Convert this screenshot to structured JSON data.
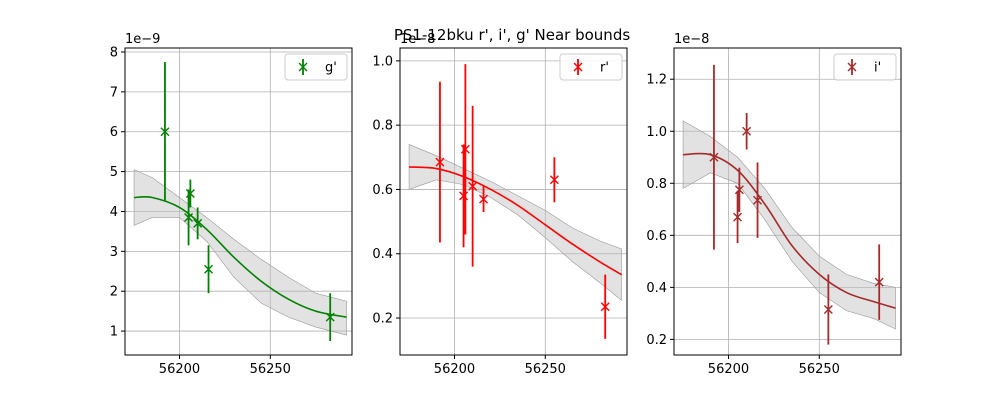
{
  "figure": {
    "title": "PS1-12bku  r', i', g' Near bounds"
  },
  "chart_data": [
    {
      "type": "scatter",
      "band": "g'",
      "color": "#008000",
      "band_fill": "#bfbfbf",
      "xlim": [
        56170,
        56295
      ],
      "ylim": [
        0.4,
        8.1
      ],
      "xticks": [
        56200,
        56250
      ],
      "yticks": [
        1,
        2,
        3,
        4,
        5,
        6,
        7,
        8
      ],
      "offset_label": "1e−9",
      "grid": true,
      "legend": {
        "position": "top-right",
        "label": "g'"
      },
      "points": [
        {
          "x": 56192,
          "y": 6.0,
          "yerr": 1.75
        },
        {
          "x": 56205,
          "y": 3.85,
          "yerr": 0.7
        },
        {
          "x": 56206,
          "y": 4.45,
          "yerr": 0.35
        },
        {
          "x": 56210,
          "y": 3.7,
          "yerr": 0.4
        },
        {
          "x": 56216,
          "y": 2.55,
          "yerr": 0.6
        },
        {
          "x": 56283,
          "y": 1.35,
          "yerr": 0.6
        }
      ],
      "fit": [
        {
          "x": 56175,
          "y": 4.35,
          "lo": 3.65,
          "hi": 5.05
        },
        {
          "x": 56185,
          "y": 4.35,
          "lo": 3.85,
          "hi": 4.85
        },
        {
          "x": 56200,
          "y": 4.1,
          "lo": 3.85,
          "hi": 4.35
        },
        {
          "x": 56215,
          "y": 3.55,
          "lo": 3.25,
          "hi": 3.85
        },
        {
          "x": 56230,
          "y": 2.85,
          "lo": 2.35,
          "hi": 3.3
        },
        {
          "x": 56245,
          "y": 2.25,
          "lo": 1.7,
          "hi": 2.8
        },
        {
          "x": 56260,
          "y": 1.8,
          "lo": 1.35,
          "hi": 2.35
        },
        {
          "x": 56275,
          "y": 1.5,
          "lo": 1.1,
          "hi": 1.95
        },
        {
          "x": 56292,
          "y": 1.35,
          "lo": 0.9,
          "hi": 1.75
        }
      ]
    },
    {
      "type": "scatter",
      "band": "r'",
      "color": "#ff0000",
      "band_fill": "#bfbfbf",
      "xlim": [
        56170,
        56295
      ],
      "ylim": [
        0.085,
        1.04
      ],
      "xticks": [
        56200,
        56250
      ],
      "yticks": [
        0.2,
        0.4,
        0.6,
        0.8,
        1.0
      ],
      "offset_label": "1e−8",
      "grid": true,
      "legend": {
        "position": "top-right",
        "label": "r'"
      },
      "points": [
        {
          "x": 56192,
          "y": 0.685,
          "yerr": 0.25
        },
        {
          "x": 56205,
          "y": 0.58,
          "yerr": 0.16
        },
        {
          "x": 56206,
          "y": 0.725,
          "yerr": 0.265
        },
        {
          "x": 56210,
          "y": 0.61,
          "yerr": 0.25
        },
        {
          "x": 56216,
          "y": 0.57,
          "yerr": 0.04
        },
        {
          "x": 56255,
          "y": 0.63,
          "yerr": 0.07
        },
        {
          "x": 56283,
          "y": 0.235,
          "yerr": 0.1
        }
      ],
      "fit": [
        {
          "x": 56175,
          "y": 0.67,
          "lo": 0.6,
          "hi": 0.74
        },
        {
          "x": 56190,
          "y": 0.665,
          "lo": 0.63,
          "hi": 0.705
        },
        {
          "x": 56205,
          "y": 0.64,
          "lo": 0.615,
          "hi": 0.665
        },
        {
          "x": 56220,
          "y": 0.6,
          "lo": 0.575,
          "hi": 0.625
        },
        {
          "x": 56235,
          "y": 0.55,
          "lo": 0.52,
          "hi": 0.58
        },
        {
          "x": 56250,
          "y": 0.49,
          "lo": 0.45,
          "hi": 0.535
        },
        {
          "x": 56265,
          "y": 0.43,
          "lo": 0.375,
          "hi": 0.48
        },
        {
          "x": 56280,
          "y": 0.375,
          "lo": 0.31,
          "hi": 0.44
        },
        {
          "x": 56292,
          "y": 0.335,
          "lo": 0.255,
          "hi": 0.415
        }
      ]
    },
    {
      "type": "scatter",
      "band": "i'",
      "color": "#a52a2a",
      "band_fill": "#bfbfbf",
      "xlim": [
        56170,
        56295
      ],
      "ylim": [
        0.14,
        1.32
      ],
      "xticks": [
        56200,
        56250
      ],
      "yticks": [
        0.2,
        0.4,
        0.6,
        0.8,
        1.0,
        1.2
      ],
      "offset_label": "1e−8",
      "grid": true,
      "legend": {
        "position": "top-right",
        "label": "i'"
      },
      "points": [
        {
          "x": 56192,
          "y": 0.9,
          "yerr": 0.355
        },
        {
          "x": 56205,
          "y": 0.67,
          "yerr": 0.1
        },
        {
          "x": 56206,
          "y": 0.775,
          "yerr": 0.085
        },
        {
          "x": 56210,
          "y": 1.0,
          "yerr": 0.07
        },
        {
          "x": 56216,
          "y": 0.735,
          "yerr": 0.145
        },
        {
          "x": 56255,
          "y": 0.315,
          "yerr": 0.135
        },
        {
          "x": 56283,
          "y": 0.42,
          "yerr": 0.145
        }
      ],
      "fit": [
        {
          "x": 56175,
          "y": 0.91,
          "lo": 0.78,
          "hi": 1.04
        },
        {
          "x": 56190,
          "y": 0.91,
          "lo": 0.84,
          "hi": 0.98
        },
        {
          "x": 56205,
          "y": 0.85,
          "lo": 0.8,
          "hi": 0.9
        },
        {
          "x": 56220,
          "y": 0.72,
          "lo": 0.66,
          "hi": 0.78
        },
        {
          "x": 56235,
          "y": 0.56,
          "lo": 0.5,
          "hi": 0.63
        },
        {
          "x": 56250,
          "y": 0.45,
          "lo": 0.38,
          "hi": 0.52
        },
        {
          "x": 56265,
          "y": 0.38,
          "lo": 0.31,
          "hi": 0.45
        },
        {
          "x": 56280,
          "y": 0.345,
          "lo": 0.28,
          "hi": 0.415
        },
        {
          "x": 56292,
          "y": 0.32,
          "lo": 0.24,
          "hi": 0.4
        }
      ]
    }
  ]
}
